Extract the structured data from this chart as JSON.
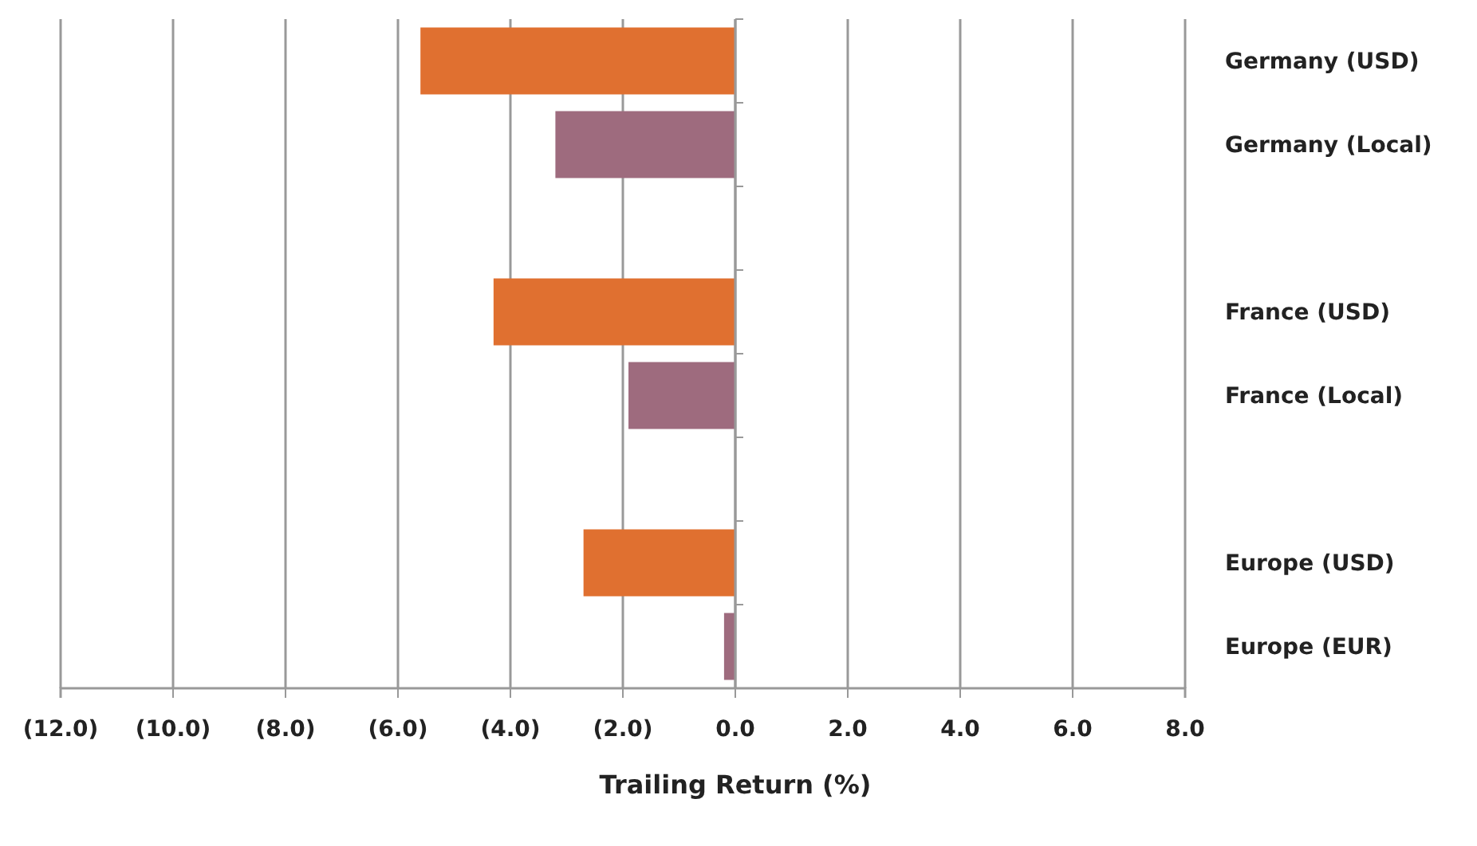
{
  "chart_data": {
    "type": "bar",
    "orientation": "horizontal",
    "xlabel": "Trailing Return (%)",
    "categories": [
      "Germany (USD)",
      "Germany (Local)",
      null,
      "France (USD)",
      "France (Local)",
      null,
      "Europe (USD)",
      "Europe (EUR)"
    ],
    "values": [
      -5.6,
      -3.2,
      null,
      -4.3,
      -1.9,
      null,
      -2.7,
      -0.2
    ],
    "colors": [
      "#e07030",
      "#9e6b7e",
      null,
      "#e07030",
      "#9e6b7e",
      null,
      "#e07030",
      "#9e6b7e"
    ],
    "xlim": [
      -12,
      8
    ],
    "xticks": [
      {
        "value": -12,
        "label": "(12.0)"
      },
      {
        "value": -10,
        "label": "(10.0)"
      },
      {
        "value": -8,
        "label": "(8.0)"
      },
      {
        "value": -6,
        "label": "(6.0)"
      },
      {
        "value": -4,
        "label": "(4.0)"
      },
      {
        "value": -2,
        "label": "(2.0)"
      },
      {
        "value": 0,
        "label": "0.0"
      },
      {
        "value": 2,
        "label": "2.0"
      },
      {
        "value": 4,
        "label": "4.0"
      },
      {
        "value": 6,
        "label": "6.0"
      },
      {
        "value": 8,
        "label": "8.0"
      }
    ],
    "grid": "x"
  }
}
